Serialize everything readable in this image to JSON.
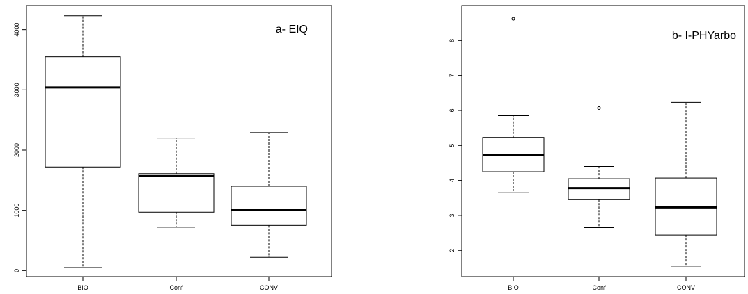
{
  "chart_data": [
    {
      "type": "boxplot",
      "title": "a- EIQ",
      "xlabel": "",
      "ylabel": "",
      "ylim": [
        -100,
        4400
      ],
      "yticks": [
        0,
        1000,
        2000,
        3000,
        4000
      ],
      "categories": [
        "BIO",
        "Conf",
        "CONV"
      ],
      "boxes": [
        {
          "category": "BIO",
          "whisker_low": 50,
          "q1": 1720,
          "median": 3040,
          "q3": 3550,
          "whisker_high": 4230,
          "outliers": []
        },
        {
          "category": "Conf",
          "whisker_low": 720,
          "q1": 970,
          "median": 1570,
          "q3": 1610,
          "whisker_high": 2200,
          "outliers": []
        },
        {
          "category": "CONV",
          "whisker_low": 220,
          "q1": 750,
          "median": 1010,
          "q3": 1400,
          "whisker_high": 2290,
          "outliers": []
        }
      ],
      "colors": {
        "box": "#000000",
        "background": "#ffffff"
      }
    },
    {
      "type": "boxplot",
      "title": "b- I-PHYarbo",
      "xlabel": "",
      "ylabel": "",
      "ylim": [
        1.25,
        9.0
      ],
      "yticks": [
        2,
        3,
        4,
        5,
        6,
        7,
        8
      ],
      "categories": [
        "BIO",
        "Conf",
        "CONV"
      ],
      "boxes": [
        {
          "category": "BIO",
          "whisker_low": 3.65,
          "q1": 4.25,
          "median": 4.72,
          "q3": 5.23,
          "whisker_high": 5.85,
          "outliers": [
            8.62
          ]
        },
        {
          "category": "Conf",
          "whisker_low": 2.65,
          "q1": 3.45,
          "median": 3.78,
          "q3": 4.05,
          "whisker_high": 4.4,
          "outliers": [
            6.07
          ]
        },
        {
          "category": "CONV",
          "whisker_low": 1.55,
          "q1": 2.44,
          "median": 3.23,
          "q3": 4.07,
          "whisker_high": 6.23,
          "outliers": []
        }
      ],
      "colors": {
        "box": "#000000",
        "background": "#ffffff"
      }
    }
  ]
}
